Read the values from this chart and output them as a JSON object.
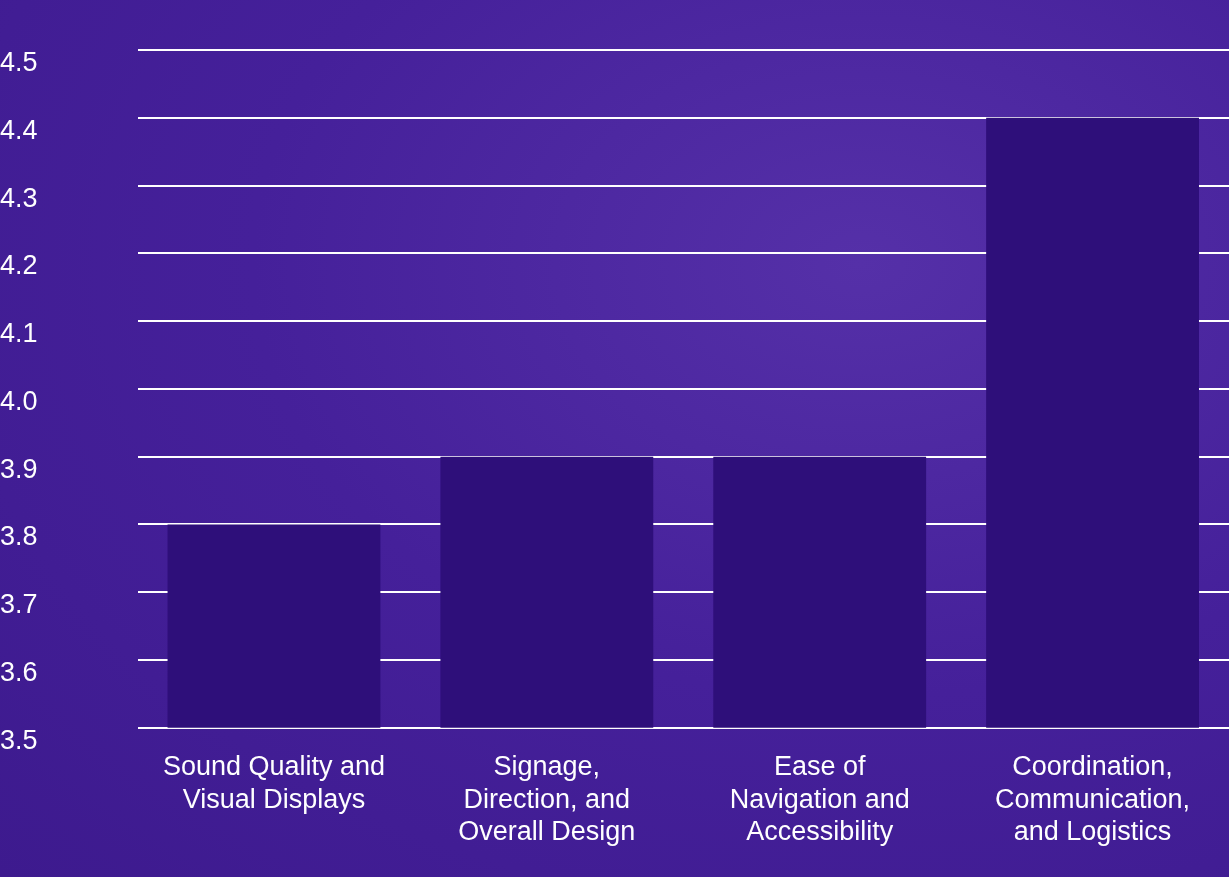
{
  "chart_data": {
    "type": "bar",
    "categories": [
      "Sound Quality and Visual Displays",
      "Signage, Direction, and Overall Design",
      "Ease of Navigation and Accessibility",
      "Coordination, Communication, and Logistics"
    ],
    "values": [
      3.8,
      3.9,
      3.9,
      4.4
    ],
    "color": "#2e0f7a",
    "ylim": [
      3.5,
      4.5
    ],
    "yticks": [
      {
        "value": 3.5,
        "label": "3.5"
      },
      {
        "value": 3.6,
        "label": "3.6"
      },
      {
        "value": 3.7,
        "label": "3.7"
      },
      {
        "value": 3.8,
        "label": "3.8"
      },
      {
        "value": 3.9,
        "label": "3.9"
      },
      {
        "value": 4.0,
        "label": "4.0"
      },
      {
        "value": 4.1,
        "label": "4.1"
      },
      {
        "value": 4.2,
        "label": "4.2"
      },
      {
        "value": 4.3,
        "label": "4.3"
      },
      {
        "value": 4.4,
        "label": "4.4"
      },
      {
        "value": 4.5,
        "label": "4.5"
      }
    ],
    "grid": "y",
    "legend": false
  }
}
